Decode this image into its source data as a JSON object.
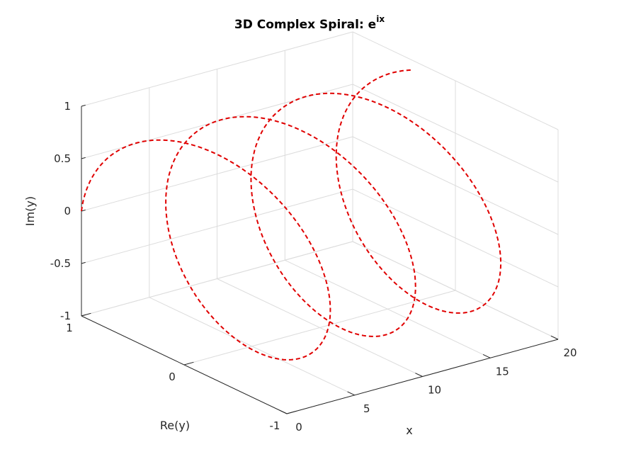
{
  "chart_data": {
    "type": "line3d",
    "title_main": "3D Complex Spiral: e",
    "title_sup": "ix",
    "xlabel": "x",
    "ylabel": "Re(y)",
    "zlabel": "Im(y)",
    "xlim": [
      0,
      20
    ],
    "ylim": [
      -1,
      1
    ],
    "zlim": [
      -1,
      1
    ],
    "xticks": [
      "0",
      "5",
      "10",
      "15",
      "20"
    ],
    "yticks": [
      "-1",
      "0",
      "1"
    ],
    "zticks": [
      "-1",
      "-0.5",
      "0",
      "0.5",
      "1"
    ],
    "grid": true,
    "series": [
      {
        "function": "y = exp(i*x)",
        "x_range": [
          0,
          20
        ],
        "samples": 400,
        "color": "#e00000",
        "line_style": "dashed"
      }
    ]
  }
}
